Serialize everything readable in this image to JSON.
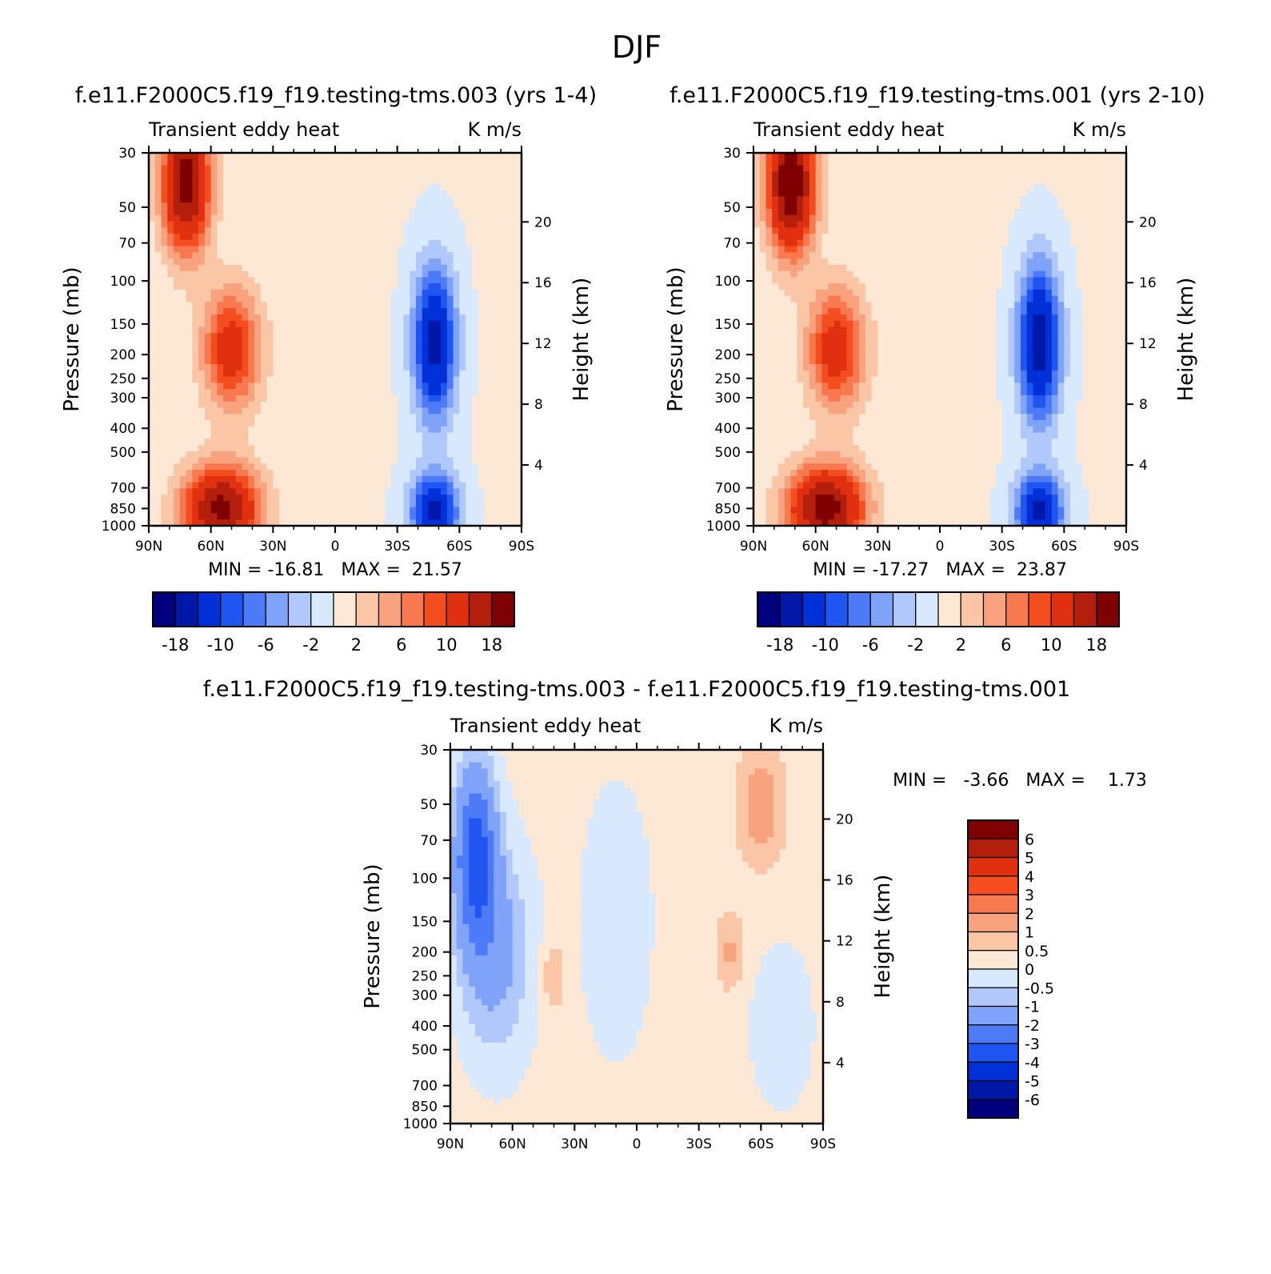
{
  "figure": {
    "title": "DJF",
    "panels": [
      {
        "title": "f.e11.F2000C5.f19_f19.testing-tms.003 (yrs 1-4)",
        "left_label": "Transient eddy heat",
        "right_label": "K m/s",
        "y_label": "Pressure (mb)",
        "y2_label": "Height (km)",
        "stats": "MIN = -16.81   MAX =  21.57"
      },
      {
        "title": "f.e11.F2000C5.f19_f19.testing-tms.001 (yrs 2-10)",
        "left_label": "Transient eddy heat",
        "right_label": "K m/s",
        "y_label": "Pressure (mb)",
        "y2_label": "Height (km)",
        "stats": "MIN = -17.27   MAX =  23.87"
      },
      {
        "title": "f.e11.F2000C5.f19_f19.testing-tms.003 - f.e11.F2000C5.f19_f19.testing-tms.001",
        "left_label": "Transient eddy heat",
        "right_label": "K m/s",
        "y_label": "Pressure (mb)",
        "y2_label": "Height (km)",
        "stats": "MIN =   -3.66   MAX =    1.73"
      }
    ]
  },
  "chart_data": [
    {
      "type": "heatmap",
      "title": "f.e11.F2000C5.f19_f19.testing-tms.003 (yrs 1-4)",
      "x_ticks": [
        "90N",
        "60N",
        "30N",
        "0",
        "30S",
        "60S",
        "90S"
      ],
      "y_ticks": [
        "30",
        "50",
        "70",
        "100",
        "150",
        "200",
        "250",
        "300",
        "400",
        "500",
        "700",
        "850",
        "1000"
      ],
      "y2_ticks": [
        "20",
        "16",
        "12",
        "8",
        "4"
      ],
      "min": -16.81,
      "max": 21.57,
      "colorbar_labels": [
        "-18",
        "-10",
        "-6",
        "-2",
        "2",
        "6",
        "10",
        "18"
      ],
      "features": [
        {
          "lat": 72,
          "p": 40,
          "v": 20,
          "sx": 8,
          "sy": 0.45
        },
        {
          "lat": 50,
          "p": 190,
          "v": 12,
          "sx": 10,
          "sy": 0.4
        },
        {
          "lat": 55,
          "p": 850,
          "v": 19,
          "sx": 13,
          "sy": 0.28
        },
        {
          "lat": -48,
          "p": 180,
          "v": -16,
          "sx": 7,
          "sy": 0.5
        },
        {
          "lat": -48,
          "p": 870,
          "v": -15,
          "sx": 8,
          "sy": 0.25
        }
      ]
    },
    {
      "type": "heatmap",
      "title": "f.e11.F2000C5.f19_f19.testing-tms.001 (yrs 2-10)",
      "x_ticks": [
        "90N",
        "60N",
        "30N",
        "0",
        "30S",
        "60S",
        "90S"
      ],
      "y_ticks": [
        "30",
        "50",
        "70",
        "100",
        "150",
        "200",
        "250",
        "300",
        "400",
        "500",
        "700",
        "850",
        "1000"
      ],
      "y2_ticks": [
        "20",
        "16",
        "12",
        "8",
        "4"
      ],
      "min": -17.27,
      "max": 23.87,
      "colorbar_labels": [
        "-18",
        "-10",
        "-6",
        "-2",
        "2",
        "6",
        "10",
        "18"
      ],
      "features": [
        {
          "lat": 72,
          "p": 40,
          "v": 22,
          "sx": 8,
          "sy": 0.45
        },
        {
          "lat": 50,
          "p": 190,
          "v": 12,
          "sx": 10,
          "sy": 0.4
        },
        {
          "lat": 55,
          "p": 850,
          "v": 20,
          "sx": 13,
          "sy": 0.28
        },
        {
          "lat": -48,
          "p": 180,
          "v": -17,
          "sx": 7,
          "sy": 0.5
        },
        {
          "lat": -48,
          "p": 870,
          "v": -15,
          "sx": 8,
          "sy": 0.25
        }
      ]
    },
    {
      "type": "heatmap",
      "title": "f.e11.F2000C5.f19_f19.testing-tms.003 - f.e11.F2000C5.f19_f19.testing-tms.001",
      "x_ticks": [
        "90N",
        "60N",
        "30N",
        "0",
        "30S",
        "60S",
        "90S"
      ],
      "y_ticks": [
        "30",
        "50",
        "70",
        "100",
        "150",
        "200",
        "250",
        "300",
        "400",
        "500",
        "700",
        "850",
        "1000"
      ],
      "y2_ticks": [
        "20",
        "16",
        "12",
        "8",
        "4"
      ],
      "min": -3.66,
      "max": 1.73,
      "colorbar_labels": [
        "6",
        "5",
        "4",
        "3",
        "2",
        "1",
        "0.5",
        "0",
        "-0.5",
        "-1",
        "-2",
        "-3",
        "-4",
        "-5",
        "-6"
      ],
      "features": [
        {
          "lat": 78,
          "p": 80,
          "v": -3.5,
          "sx": 7,
          "sy": 0.6
        },
        {
          "lat": 68,
          "p": 200,
          "v": -1.5,
          "sx": 12,
          "sy": 0.7
        },
        {
          "lat": 10,
          "p": 150,
          "v": -0.6,
          "sx": 12,
          "sy": 0.9
        },
        {
          "lat": -60,
          "p": 50,
          "v": 1.2,
          "sx": 8,
          "sy": 0.4
        },
        {
          "lat": -45,
          "p": 200,
          "v": 0.9,
          "sx": 5,
          "sy": 0.25
        },
        {
          "lat": 40,
          "p": 250,
          "v": 0.8,
          "sx": 4,
          "sy": 0.25
        },
        {
          "lat": -70,
          "p": 400,
          "v": -0.7,
          "sx": 10,
          "sy": 0.5
        }
      ]
    }
  ],
  "colors": {
    "diverging": [
      "#00007f",
      "#0017a8",
      "#0030d8",
      "#1f55f0",
      "#4d7bf7",
      "#7ea3f8",
      "#b0c8fb",
      "#d9e9fd",
      "#fde8d6",
      "#fbc6a6",
      "#f9a27e",
      "#f8794f",
      "#f44e1f",
      "#e03010",
      "#b31f0a",
      "#7f0000"
    ]
  }
}
